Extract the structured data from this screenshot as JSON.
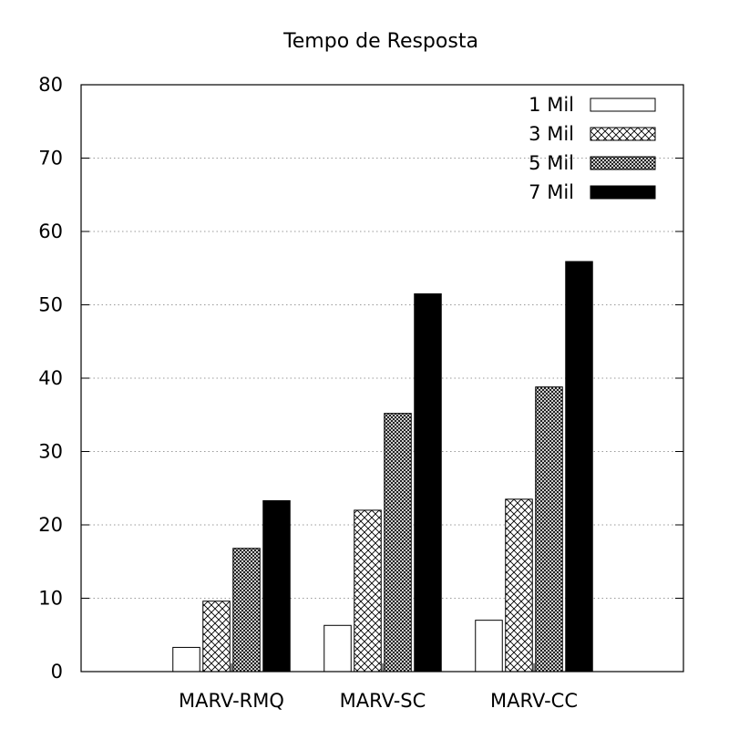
{
  "chart_data": {
    "type": "bar",
    "title": "Tempo de Resposta",
    "xlabel": "",
    "ylabel": "",
    "categories": [
      "MARV-RMQ",
      "MARV-SC",
      "MARV-CC"
    ],
    "series": [
      {
        "name": "1 Mil",
        "values": [
          3.3,
          6.3,
          7.0
        ],
        "fill": "white"
      },
      {
        "name": "3 Mil",
        "values": [
          9.6,
          22.0,
          23.5
        ],
        "fill": "crosshatch"
      },
      {
        "name": "5 Mil",
        "values": [
          16.8,
          35.2,
          38.8
        ],
        "fill": "dense-crosshatch"
      },
      {
        "name": "7 Mil",
        "values": [
          23.3,
          51.5,
          55.9
        ],
        "fill": "black"
      }
    ],
    "ylim": [
      0,
      80
    ],
    "yticks": [
      0,
      10,
      20,
      30,
      40,
      50,
      60,
      70,
      80
    ],
    "grid": true,
    "legend_position": "top-right",
    "colors": {
      "bar_border": "#000000",
      "solid": "#000000",
      "empty": "#ffffff",
      "grid": "#9a9a9a"
    }
  }
}
